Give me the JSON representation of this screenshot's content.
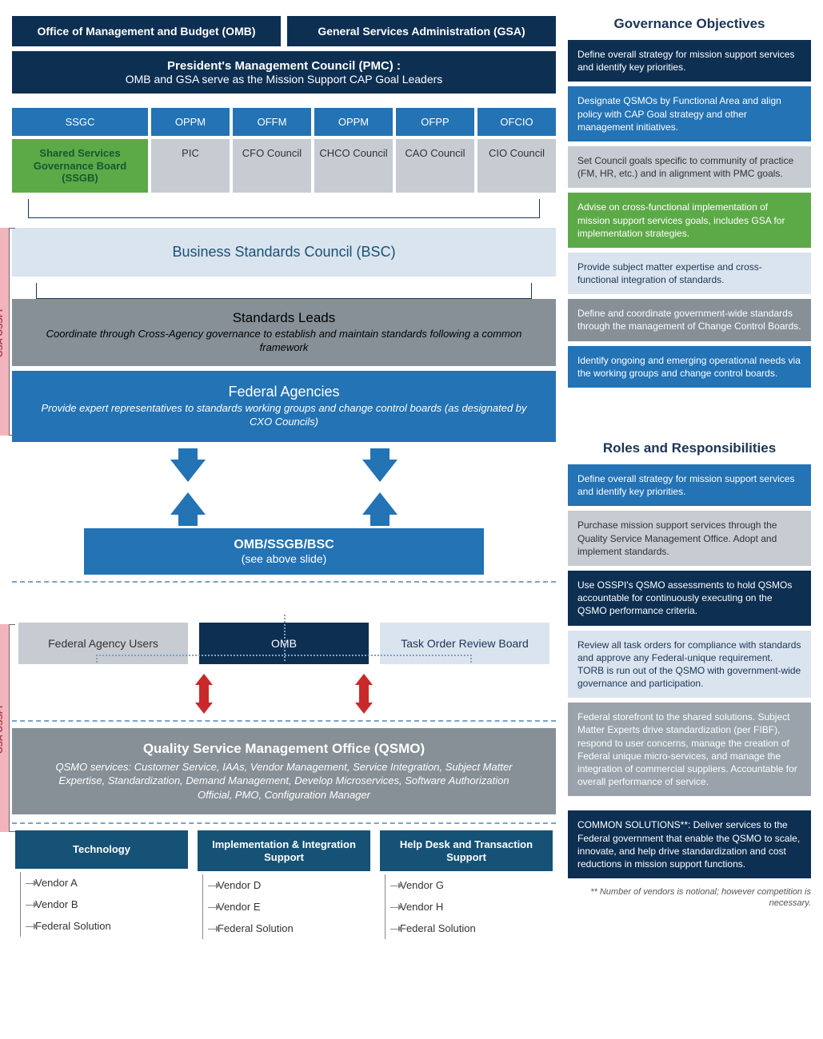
{
  "top": {
    "omb": "Office of Management and Budget (OMB)",
    "gsa": "General Services Administration (GSA)"
  },
  "pmc": {
    "t": "President's Management Council (PMC) :",
    "s": "OMB and GSA serve as the Mission Support CAP Goal Leaders"
  },
  "acro1": [
    "SSGC",
    "OPPM",
    "OFFM",
    "OPPM",
    "OFPP",
    "OFCIO"
  ],
  "acro2h": "Shared Services Governance Board (SSGB)",
  "acro2": [
    "PIC",
    "CFO Council",
    "CHCO Council",
    "CAO Council",
    "CIO Council"
  ],
  "bsc": "Business Standards Council (BSC)",
  "std": {
    "t": "Standards Leads",
    "s": "Coordinate through Cross-Agency governance to establish and maintain  standards following a common framework"
  },
  "fa": {
    "t": "Federal Agencies",
    "s": "Provide expert representatives to standards working groups and change control boards (as designated by CXO Councils)"
  },
  "osb": {
    "t": "OMB/SSGB/BSC",
    "s": "(see above slide)"
  },
  "three": [
    "Federal Agency Users",
    "OMB",
    "Task Order Review Board"
  ],
  "qsmo": {
    "t": "Quality Service Management Office (QSMO)",
    "s": "QSMO services: Customer Service, IAAs, Vendor Management, Service Integration, Subject Matter Expertise, Standardization, Demand Management, Develop Microservices, Software Authorization Official, PMO, Configuration Manager"
  },
  "cats": [
    {
      "h": "Technology",
      "i": [
        "Vendor A",
        "Vendor B",
        "Federal Solution"
      ]
    },
    {
      "h": "Implementation & Integration Support",
      "i": [
        "Vendor D",
        "Vendor E",
        "Federal Solution"
      ]
    },
    {
      "h": "Help Desk and Transaction Support",
      "i": [
        "Vendor G",
        "Vendor H",
        "Federal Solution"
      ]
    }
  ],
  "gov_h": "Governance Objectives",
  "gov": [
    {
      "c": "navy",
      "t": "Define overall strategy for mission support services and identify key priorities."
    },
    {
      "c": "blue",
      "t": "Designate QSMOs by Functional Area and align policy with CAP Goal strategy and other management initiatives."
    },
    {
      "c": "lgray md",
      "t": "Set Council goals specific to community of practice (FM, HR, etc.) and in alignment with PMC goals."
    },
    {
      "c": "green",
      "t": "Advise on cross-functional implementation of mission support services goals, includes GSA for implementation strategies."
    },
    {
      "c": "lblue lt",
      "t": "Provide subject matter expertise and cross-functional integration of standards."
    },
    {
      "c": "sgray",
      "t": "Define and coordinate government-wide standards through the management of Change Control Boards."
    },
    {
      "c": "blue",
      "t": "Identify ongoing and emerging operational needs via the working groups and change control boards."
    }
  ],
  "rr_h": "Roles and Responsibilities",
  "rr": [
    {
      "c": "blue",
      "t": "Define overall strategy for mission support services and identify key priorities."
    },
    {
      "c": "lgray md",
      "t": "Purchase mission support services through the Quality Service Management Office.  Adopt  and implement standards."
    },
    {
      "c": "navy",
      "t": "Use OSSPI's QSMO assessments to hold QSMOs accountable for continuously executing on the QSMO performance criteria."
    },
    {
      "c": "lblue lt",
      "t": "Review all task orders for compliance with standards and approve any Federal-unique requirement. TORB is run out of the QSMO with government-wide governance and participation."
    },
    {
      "c": "gray",
      "t": "Federal storefront to the shared solutions.  Subject Matter Experts drive standardization (per FIBF), respond to user concerns, manage the creation of Federal unique micro-services, and manage the integration of commercial suppliers.  Accountable for overall performance of service."
    },
    {
      "c": "navy",
      "t": "COMMON SOLUTIONS**:  Deliver services to the Federal government that enable the QSMO to scale, innovate, and help drive standardization and cost reductions in mission support functions."
    }
  ],
  "pink": "GSA OSSPI*",
  "foot": "** Number of vendors is notional; however competition is necessary."
}
